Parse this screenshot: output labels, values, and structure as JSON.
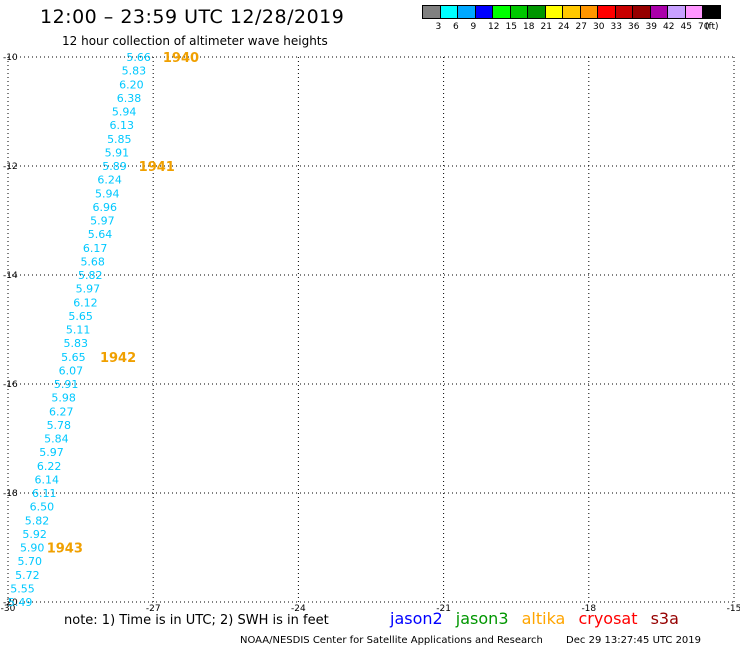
{
  "header": {
    "title": "12:00 – 23:59 UTC 12/28/2019",
    "subtitle": "12 hour collection of altimeter wave heights"
  },
  "colorbar": {
    "colors": [
      "#808080",
      "#00ffff",
      "#00a8ff",
      "#0000ff",
      "#00ff00",
      "#00c800",
      "#009600",
      "#ffff00",
      "#ffc800",
      "#ff9600",
      "#ff0000",
      "#c80000",
      "#960000",
      "#aa00aa",
      "#c8a0ff",
      "#ff96ff",
      "#000000"
    ],
    "labels": [
      "3",
      "6",
      "9",
      "12",
      "15",
      "18",
      "21",
      "24",
      "27",
      "30",
      "33",
      "36",
      "39",
      "42",
      "45",
      "70"
    ],
    "unit": "(ft)"
  },
  "chart_data": {
    "type": "scatter",
    "xlim": [
      -30,
      -15
    ],
    "ylim": [
      -20,
      -10
    ],
    "x_ticks": [
      "-30",
      "-27",
      "-24",
      "-21",
      "-18",
      "-15"
    ],
    "y_ticks": [
      "-10",
      "-12",
      "-14",
      "-16",
      "-18",
      "-20"
    ],
    "grid": true,
    "swh_points": [
      {
        "label": "5.66",
        "lon": -27.3,
        "lat": -10.0
      },
      {
        "label": "5.83",
        "lon": -27.4,
        "lat": -10.25
      },
      {
        "label": "6.20",
        "lon": -27.45,
        "lat": -10.5
      },
      {
        "label": "6.38",
        "lon": -27.5,
        "lat": -10.75
      },
      {
        "label": "5.94",
        "lon": -27.6,
        "lat": -11.0
      },
      {
        "label": "6.13",
        "lon": -27.65,
        "lat": -11.25
      },
      {
        "label": "5.85",
        "lon": -27.7,
        "lat": -11.5
      },
      {
        "label": "5.91",
        "lon": -27.75,
        "lat": -11.75
      },
      {
        "label": "5.89",
        "lon": -27.8,
        "lat": -12.0
      },
      {
        "label": "6.24",
        "lon": -27.9,
        "lat": -12.25
      },
      {
        "label": "5.94",
        "lon": -27.95,
        "lat": -12.5
      },
      {
        "label": "6.96",
        "lon": -28.0,
        "lat": -12.75
      },
      {
        "label": "5.97",
        "lon": -28.05,
        "lat": -13.0
      },
      {
        "label": "5.64",
        "lon": -28.1,
        "lat": -13.25
      },
      {
        "label": "6.17",
        "lon": -28.2,
        "lat": -13.5
      },
      {
        "label": "5.68",
        "lon": -28.25,
        "lat": -13.75
      },
      {
        "label": "5.82",
        "lon": -28.3,
        "lat": -14.0
      },
      {
        "label": "5.97",
        "lon": -28.35,
        "lat": -14.25
      },
      {
        "label": "6.12",
        "lon": -28.4,
        "lat": -14.5
      },
      {
        "label": "5.65",
        "lon": -28.5,
        "lat": -14.75
      },
      {
        "label": "5.11",
        "lon": -28.55,
        "lat": -15.0
      },
      {
        "label": "5.83",
        "lon": -28.6,
        "lat": -15.25
      },
      {
        "label": "5.65",
        "lon": -28.65,
        "lat": -15.5
      },
      {
        "label": "6.07",
        "lon": -28.7,
        "lat": -15.75
      },
      {
        "label": "5.91",
        "lon": -28.8,
        "lat": -16.0
      },
      {
        "label": "5.98",
        "lon": -28.85,
        "lat": -16.25
      },
      {
        "label": "6.27",
        "lon": -28.9,
        "lat": -16.5
      },
      {
        "label": "5.78",
        "lon": -28.95,
        "lat": -16.75
      },
      {
        "label": "5.84",
        "lon": -29.0,
        "lat": -17.0
      },
      {
        "label": "5.97",
        "lon": -29.1,
        "lat": -17.25
      },
      {
        "label": "6.22",
        "lon": -29.15,
        "lat": -17.5
      },
      {
        "label": "6.14",
        "lon": -29.2,
        "lat": -17.75
      },
      {
        "label": "6.11",
        "lon": -29.25,
        "lat": -18.0
      },
      {
        "label": "6.50",
        "lon": -29.3,
        "lat": -18.25
      },
      {
        "label": "5.82",
        "lon": -29.4,
        "lat": -18.5
      },
      {
        "label": "5.92",
        "lon": -29.45,
        "lat": -18.75
      },
      {
        "label": "5.90",
        "lon": -29.5,
        "lat": -19.0
      },
      {
        "label": "5.70",
        "lon": -29.55,
        "lat": -19.25
      },
      {
        "label": "5.72",
        "lon": -29.6,
        "lat": -19.5
      },
      {
        "label": "5.55",
        "lon": -29.7,
        "lat": -19.75
      },
      {
        "label": "5.49",
        "lon": -29.75,
        "lat": -20.0
      }
    ],
    "time_labels": [
      {
        "label": "1940",
        "lon": -26.8,
        "lat": -10.0
      },
      {
        "label": "1941",
        "lon": -27.3,
        "lat": -12.0
      },
      {
        "label": "1942",
        "lon": -28.1,
        "lat": -15.5
      },
      {
        "label": "1943",
        "lon": -29.2,
        "lat": -19.0
      }
    ]
  },
  "colors": {
    "point": "#00c8ff",
    "time": "#f0a000",
    "grid": "#000000"
  },
  "note": "note:  1) Time is in UTC;  2) SWH is in feet",
  "legend": [
    {
      "name": "jason2",
      "color": "#0000ff"
    },
    {
      "name": "jason3",
      "color": "#009600"
    },
    {
      "name": "altika",
      "color": "#ffa500"
    },
    {
      "name": "cryosat",
      "color": "#ff0000"
    },
    {
      "name": "s3a",
      "color": "#960000"
    }
  ],
  "footer": {
    "credit": "NOAA/NESDIS Center for Satellite Applications and Research",
    "timestamp": "Dec 29 13:27:45 UTC 2019"
  }
}
